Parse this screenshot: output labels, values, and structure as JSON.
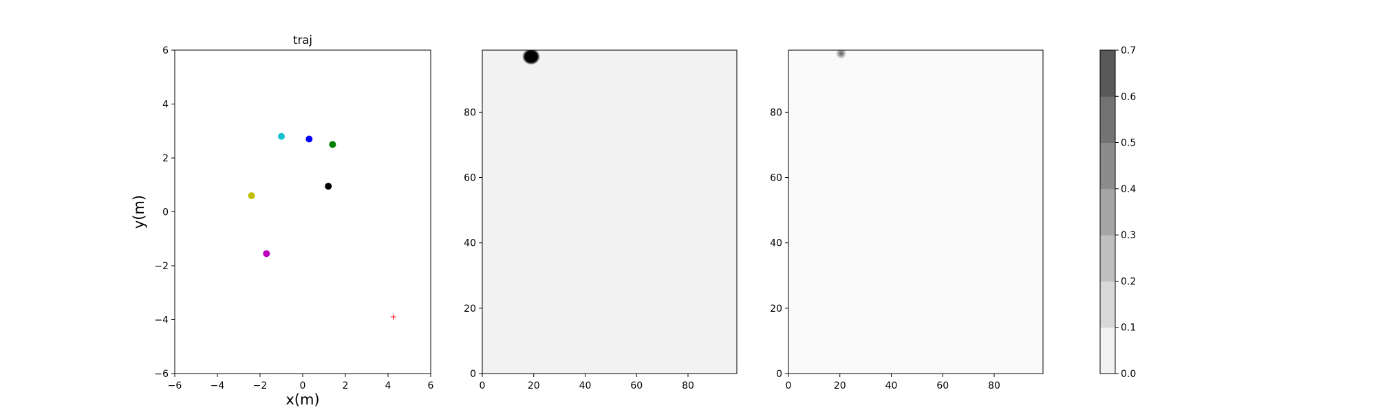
{
  "chart_data": [
    {
      "type": "scatter",
      "title": "traj",
      "xlabel": "x(m)",
      "ylabel": "y(m)",
      "xlim": [
        -6,
        6
      ],
      "ylim": [
        -6,
        6
      ],
      "xticks": [
        "−6",
        "−4",
        "−2",
        "0",
        "2",
        "4",
        "6"
      ],
      "yticks": [
        "−6",
        "−4",
        "−2",
        "0",
        "2",
        "4",
        "6"
      ],
      "points": [
        {
          "x": -1.0,
          "y": 2.8,
          "color": "#17becf",
          "marker": "circle"
        },
        {
          "x": 0.3,
          "y": 2.7,
          "color": "#0000ff",
          "marker": "circle"
        },
        {
          "x": 1.4,
          "y": 2.5,
          "color": "#008000",
          "marker": "circle"
        },
        {
          "x": 1.2,
          "y": 0.95,
          "color": "#000000",
          "marker": "circle"
        },
        {
          "x": -2.4,
          "y": 0.6,
          "color": "#bfbf00",
          "marker": "circle"
        },
        {
          "x": -1.7,
          "y": -1.55,
          "color": "#bf00bf",
          "marker": "circle"
        },
        {
          "x": 4.25,
          "y": -3.9,
          "color": "#ff0000",
          "marker": "plus"
        }
      ]
    },
    {
      "type": "heatmap",
      "xlim": [
        0,
        99
      ],
      "ylim": [
        0,
        99
      ],
      "xticks": [
        "0",
        "20",
        "40",
        "60",
        "80"
      ],
      "yticks": [
        "0",
        "20",
        "40",
        "60",
        "80"
      ],
      "background_level": 0.05,
      "blob": {
        "cx": 19,
        "cy": 97,
        "rx": 3.5,
        "ry": 2.5,
        "level": 0.7
      }
    },
    {
      "type": "heatmap",
      "xlim": [
        0,
        99
      ],
      "ylim": [
        0,
        99
      ],
      "xticks": [
        "0",
        "20",
        "40",
        "60",
        "80"
      ],
      "yticks": [
        "0",
        "20",
        "40",
        "60",
        "80"
      ],
      "background_level": 0.02,
      "blob": {
        "cx": 20.5,
        "cy": 98,
        "rx": 2.2,
        "ry": 1.8,
        "level": 0.35
      }
    }
  ],
  "colorbar": {
    "ticks": [
      "0.0",
      "0.1",
      "0.2",
      "0.3",
      "0.4",
      "0.5",
      "0.6",
      "0.7"
    ],
    "colors": [
      "#f2f2f2",
      "#d9d9d9",
      "#bfbfbf",
      "#a6a6a6",
      "#8c8c8c",
      "#737373",
      "#595959"
    ]
  }
}
